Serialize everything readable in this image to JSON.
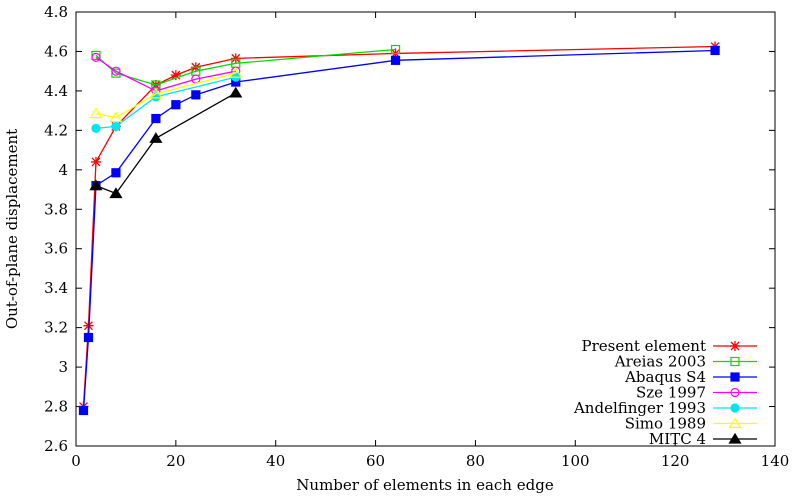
{
  "chart_data": {
    "type": "line",
    "title": "",
    "xlabel": "Number of elements in each edge",
    "ylabel": "Out-of-plane displacement",
    "xlim": [
      0,
      140
    ],
    "ylim": [
      2.6,
      4.8
    ],
    "xticks": [
      0,
      20,
      40,
      60,
      80,
      100,
      120,
      140
    ],
    "yticks": [
      2.6,
      2.8,
      3,
      3.2,
      3.4,
      3.6,
      3.8,
      4,
      4.2,
      4.4,
      4.6,
      4.8
    ],
    "xtick_labels": [
      "0",
      "20",
      "40",
      "60",
      "80",
      "100",
      "120",
      "140"
    ],
    "ytick_labels": [
      "2.6",
      "2.8",
      "3",
      "3.2",
      "3.4",
      "3.6",
      "3.8",
      "4",
      "4.2",
      "4.4",
      "4.6",
      "4.8"
    ],
    "legend_position": "bottom-right",
    "series": [
      {
        "name": "Present element",
        "color": "#ff0000",
        "marker": "star",
        "x": [
          1.5,
          2.5,
          4,
          8,
          16,
          20,
          24,
          32,
          64,
          128
        ],
        "y": [
          2.8,
          3.21,
          4.04,
          4.22,
          4.43,
          4.48,
          4.52,
          4.565,
          4.59,
          4.625
        ]
      },
      {
        "name": "Areias 2003",
        "color": "#00dd00",
        "marker": "square-open",
        "x": [
          4,
          8,
          16,
          24,
          32,
          64
        ],
        "y": [
          4.58,
          4.49,
          4.43,
          4.5,
          4.54,
          4.61
        ]
      },
      {
        "name": "Abaqus S4",
        "color": "#0000ff",
        "marker": "square",
        "x": [
          1.5,
          2.5,
          4,
          8,
          16,
          20,
          24,
          32,
          64,
          128
        ],
        "y": [
          2.78,
          3.15,
          3.92,
          3.985,
          4.26,
          4.33,
          4.38,
          4.445,
          4.555,
          4.605
        ]
      },
      {
        "name": "Sze 1997",
        "color": "#ff00ff",
        "marker": "circle-open",
        "x": [
          4,
          8,
          16,
          24,
          32
        ],
        "y": [
          4.57,
          4.5,
          4.4,
          4.46,
          4.5
        ]
      },
      {
        "name": "Andelfinger 1993",
        "color": "#00e5ee",
        "marker": "circle",
        "x": [
          4,
          8,
          16,
          32
        ],
        "y": [
          4.21,
          4.22,
          4.37,
          4.47
        ]
      },
      {
        "name": "Simo 1989",
        "color": "#ffff00",
        "marker": "triangle-open",
        "x": [
          4,
          8,
          16,
          32
        ],
        "y": [
          4.285,
          4.265,
          4.385,
          4.49
        ]
      },
      {
        "name": "MITC 4",
        "color": "#000000",
        "marker": "triangle",
        "x": [
          4,
          8,
          16,
          32
        ],
        "y": [
          3.92,
          3.88,
          4.16,
          4.39
        ]
      }
    ]
  }
}
